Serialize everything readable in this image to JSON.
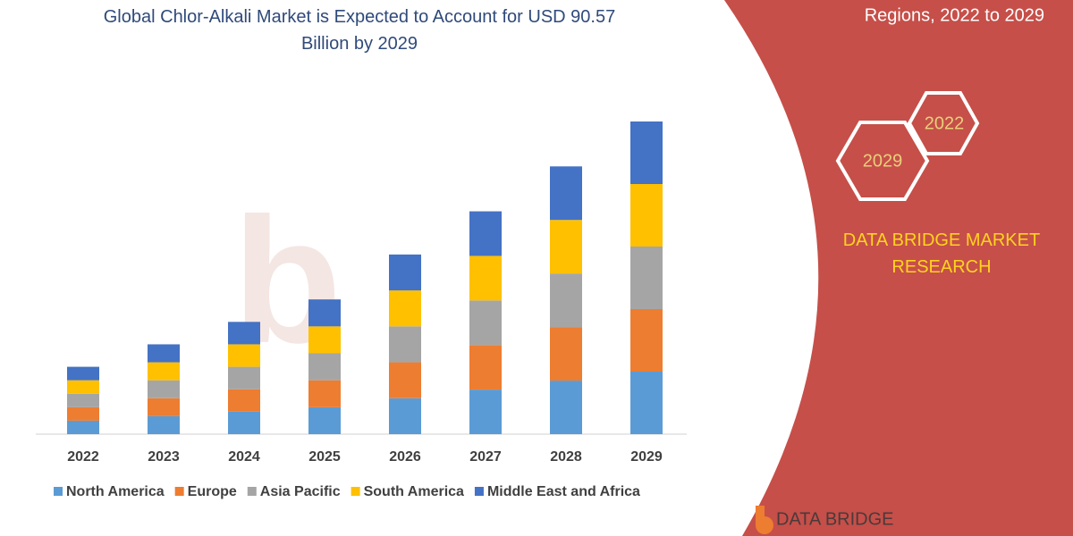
{
  "header_right": "Regions, 2022 to 2029",
  "badges": [
    "2022",
    "2029"
  ],
  "brand": "DATA BRIDGE MARKET RESEARCH",
  "logo": "DATA BRIDGE",
  "chart_data": {
    "type": "bar",
    "stacked": true,
    "title": "Global Chlor-Alkali Market is Expected to Account for USD 90.57 Billion by 2029",
    "categories": [
      "2022",
      "2023",
      "2024",
      "2025",
      "2026",
      "2027",
      "2028",
      "2029"
    ],
    "series": [
      {
        "name": "North America",
        "color": "#5b9bd5",
        "values": [
          3.9,
          5.2,
          6.5,
          7.8,
          10.4,
          12.9,
          15.5,
          18.1
        ]
      },
      {
        "name": "Europe",
        "color": "#ed7d31",
        "values": [
          3.9,
          5.2,
          6.5,
          7.8,
          10.4,
          12.9,
          15.5,
          18.1
        ]
      },
      {
        "name": "Asia Pacific",
        "color": "#a5a5a5",
        "values": [
          3.9,
          5.2,
          6.5,
          7.8,
          10.4,
          12.9,
          15.5,
          18.1
        ]
      },
      {
        "name": "South America",
        "color": "#ffc000",
        "values": [
          3.9,
          5.2,
          6.5,
          7.8,
          10.4,
          12.9,
          15.5,
          18.1
        ]
      },
      {
        "name": "Middle East and Africa",
        "color": "#4472c4",
        "values": [
          3.9,
          5.2,
          6.5,
          7.8,
          10.4,
          12.9,
          15.5,
          18.1
        ]
      }
    ]
  }
}
